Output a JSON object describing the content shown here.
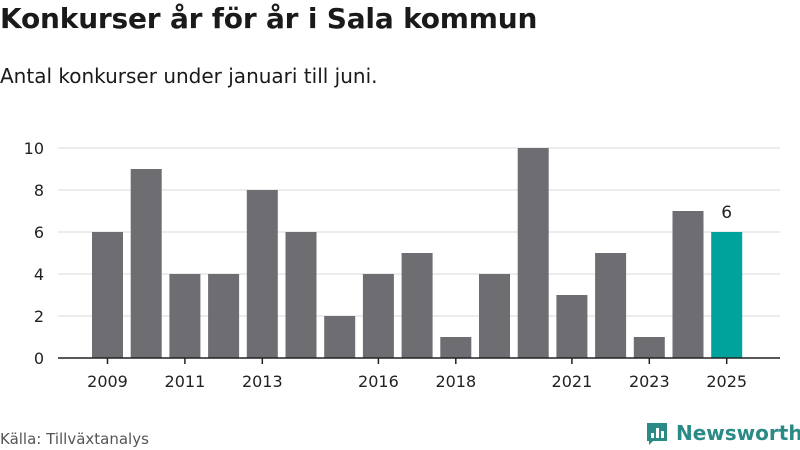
{
  "title": "Konkurser år för år i Sala kommun",
  "subtitle": "Antal konkurser under januari till juni.",
  "source": "Källa: Tillväxtanalys",
  "brand": "Newsworthy",
  "colors": {
    "bar": "#6e6d72",
    "highlight": "#00a39b",
    "grid": "#d9d9d9",
    "axis": "#222222"
  },
  "chart_data": {
    "type": "bar",
    "categories": [
      "2009",
      "2010",
      "2011",
      "2012",
      "2013",
      "2014",
      "2015",
      "2016",
      "2017",
      "2018",
      "2019",
      "2020",
      "2021",
      "2022",
      "2023",
      "2024",
      "2025"
    ],
    "values": [
      6,
      9,
      4,
      4,
      8,
      6,
      2,
      4,
      5,
      1,
      4,
      10,
      3,
      5,
      1,
      7,
      6
    ],
    "x_tick_labels": [
      "2009",
      "2011",
      "2013",
      "2016",
      "2018",
      "2021",
      "2023",
      "2025"
    ],
    "y_ticks": [
      0,
      2,
      4,
      6,
      8,
      10
    ],
    "ylim": [
      0,
      10
    ],
    "grid": true,
    "highlight_category": "2025",
    "data_labels": [
      {
        "category": "2025",
        "text": "6"
      }
    ]
  }
}
